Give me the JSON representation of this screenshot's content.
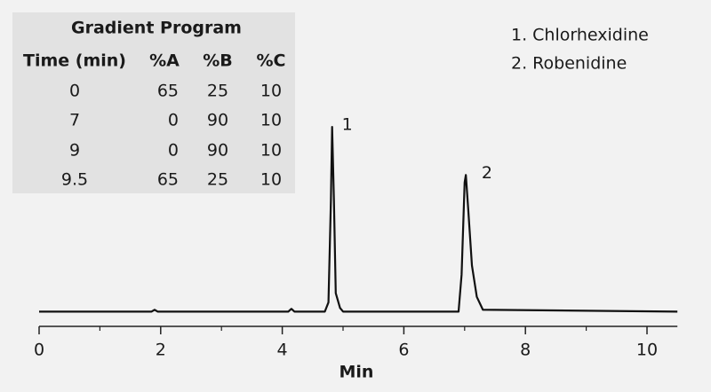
{
  "chart_data": {
    "type": "line",
    "xlabel": "Min",
    "xlim": [
      0,
      10.5
    ],
    "xticks": [
      0,
      2,
      4,
      6,
      8,
      10
    ],
    "xminorticks": [
      1,
      3,
      5,
      7,
      9
    ],
    "ylim": [
      -8,
      102
    ],
    "series": [
      {
        "color": "#111111",
        "x": [
          0,
          1.85,
          1.9,
          1.95,
          4.1,
          4.15,
          4.2,
          4.7,
          4.76,
          4.8,
          4.82,
          4.85,
          4.88,
          4.95,
          5.0,
          6.9,
          6.95,
          7.0,
          7.02,
          7.06,
          7.12,
          7.2,
          7.3,
          10.5
        ],
        "values": [
          0,
          0,
          1,
          0,
          0,
          1.5,
          0,
          0,
          5,
          60,
          100,
          60,
          10,
          2,
          0,
          0,
          20,
          70,
          74,
          55,
          25,
          8,
          1,
          0
        ]
      }
    ],
    "annotations": [
      {
        "text": "1",
        "x": 4.95,
        "y": 100
      },
      {
        "text": "2",
        "x": 7.25,
        "y": 74
      }
    ],
    "legend": [
      "1. Chlorhexidine",
      "2. Robenidine"
    ]
  },
  "table": {
    "title": "Gradient Program",
    "columns": [
      "Time (min)",
      "%A",
      "%B",
      "%C"
    ],
    "rows": [
      [
        0,
        65,
        25,
        10
      ],
      [
        7,
        0,
        90,
        10
      ],
      [
        9,
        0,
        90,
        10
      ],
      [
        9.5,
        65,
        25,
        10
      ]
    ]
  }
}
